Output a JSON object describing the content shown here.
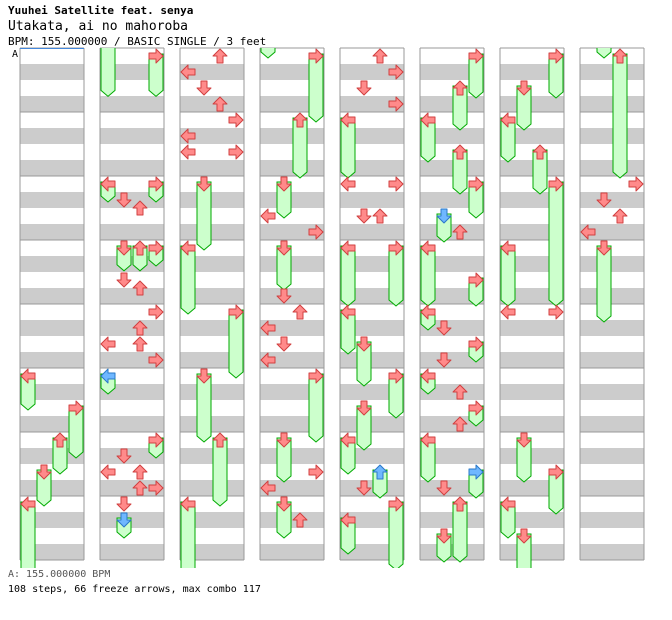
{
  "header": {
    "artist": "Yuuhei Satellite feat. senya",
    "title": "Utakata, ai no mahoroba",
    "info": "BPM: 155.000000 / BASIC SINGLE / 3 feet"
  },
  "bpm_marker": {
    "label": "A"
  },
  "footer": {
    "bpm_line": "A: 155.000000 BPM",
    "stats": "108 steps, 66 freeze arrows, max combo 117"
  },
  "chart_data": {
    "type": "step-chart",
    "lanes": [
      "left",
      "down",
      "up",
      "right"
    ],
    "columns": 8,
    "measures_per_column": 8,
    "beats_per_measure": 4,
    "total_measures": 64,
    "total_steps": 108,
    "freeze_arrows": 66,
    "max_combo": 117,
    "colors": {
      "quarter_note": "#ff8a8a",
      "quarter_stroke": "#d04040",
      "eighth_note": "#6fb7ff",
      "eighth_stroke": "#2a78c8",
      "freeze_body": "#ccffcc",
      "freeze_stroke": "#00aa00",
      "beat_shade": "#cccccc",
      "measure_line": "#999999",
      "column_border": "#999999"
    },
    "notes": [
      {
        "c": 0,
        "l": 0,
        "b": 20,
        "e": 22
      },
      {
        "c": 0,
        "l": 1,
        "b": 26,
        "e": 28
      },
      {
        "c": 0,
        "l": 2,
        "b": 24,
        "e": 26
      },
      {
        "c": 0,
        "l": 3,
        "b": 22,
        "e": 25
      },
      {
        "c": 0,
        "l": 0,
        "b": 28,
        "e": 33
      },
      {
        "c": 1,
        "l": 0,
        "b": -1,
        "e": 2.4
      },
      {
        "c": 1,
        "l": 3,
        "b": 0,
        "e": 2.4
      },
      {
        "c": 1,
        "l": 0,
        "b": 8,
        "e": 9
      },
      {
        "c": 1,
        "l": 1,
        "b": 9
      },
      {
        "c": 1,
        "l": 2,
        "b": 9.5
      },
      {
        "c": 1,
        "l": 3,
        "b": 8,
        "e": 9
      },
      {
        "c": 1,
        "l": 1,
        "b": 12,
        "e": 13.3
      },
      {
        "c": 1,
        "l": 2,
        "b": 12,
        "e": 13.3
      },
      {
        "c": 1,
        "l": 1,
        "b": 14
      },
      {
        "c": 1,
        "l": 3,
        "b": 12,
        "e": 13
      },
      {
        "c": 1,
        "l": 2,
        "b": 14.5
      },
      {
        "c": 1,
        "l": 3,
        "b": 16
      },
      {
        "c": 1,
        "l": 2,
        "b": 17
      },
      {
        "c": 1,
        "l": 0,
        "b": 18
      },
      {
        "c": 1,
        "l": 2,
        "b": 18
      },
      {
        "c": 1,
        "l": 3,
        "b": 19
      },
      {
        "c": 1,
        "l": 0,
        "b": 20,
        "e": 21,
        "q": 8
      },
      {
        "c": 1,
        "l": 3,
        "b": 24,
        "e": 25
      },
      {
        "c": 1,
        "l": 1,
        "b": 25
      },
      {
        "c": 1,
        "l": 0,
        "b": 26
      },
      {
        "c": 1,
        "l": 2,
        "b": 26
      },
      {
        "c": 1,
        "l": 1,
        "b": 28
      },
      {
        "c": 1,
        "l": 2,
        "b": 27
      },
      {
        "c": 1,
        "l": 3,
        "b": 27
      },
      {
        "c": 1,
        "l": 1,
        "b": 29,
        "e": 30,
        "q": 8
      },
      {
        "c": 2,
        "l": 2,
        "b": 0
      },
      {
        "c": 2,
        "l": 0,
        "b": 1
      },
      {
        "c": 2,
        "l": 1,
        "b": 2
      },
      {
        "c": 2,
        "l": 2,
        "b": 3
      },
      {
        "c": 2,
        "l": 3,
        "b": 4
      },
      {
        "c": 2,
        "l": 0,
        "b": 5
      },
      {
        "c": 2,
        "l": 0,
        "b": 6
      },
      {
        "c": 2,
        "l": 3,
        "b": 6
      },
      {
        "c": 2,
        "l": 1,
        "b": 8,
        "e": 12
      },
      {
        "c": 2,
        "l": 0,
        "b": 12,
        "e": 16
      },
      {
        "c": 2,
        "l": 3,
        "b": 16,
        "e": 20
      },
      {
        "c": 2,
        "l": 1,
        "b": 20,
        "e": 24
      },
      {
        "c": 2,
        "l": 2,
        "b": 24,
        "e": 28
      },
      {
        "c": 2,
        "l": 0,
        "b": 28,
        "e": 33
      },
      {
        "c": 3,
        "l": 0,
        "b": -1,
        "e": 0
      },
      {
        "c": 3,
        "l": 3,
        "b": 0,
        "e": 4
      },
      {
        "c": 3,
        "l": 2,
        "b": 4,
        "e": 7.5
      },
      {
        "c": 3,
        "l": 1,
        "b": 8,
        "e": 10
      },
      {
        "c": 3,
        "l": 0,
        "b": 10
      },
      {
        "c": 3,
        "l": 3,
        "b": 11
      },
      {
        "c": 3,
        "l": 1,
        "b": 12,
        "e": 14.5
      },
      {
        "c": 3,
        "l": 1,
        "b": 15
      },
      {
        "c": 3,
        "l": 2,
        "b": 16
      },
      {
        "c": 3,
        "l": 0,
        "b": 17
      },
      {
        "c": 3,
        "l": 1,
        "b": 18
      },
      {
        "c": 3,
        "l": 0,
        "b": 19
      },
      {
        "c": 3,
        "l": 3,
        "b": 20,
        "e": 24
      },
      {
        "c": 3,
        "l": 1,
        "b": 24,
        "e": 26.5
      },
      {
        "c": 3,
        "l": 3,
        "b": 26
      },
      {
        "c": 3,
        "l": 0,
        "b": 27
      },
      {
        "c": 3,
        "l": 1,
        "b": 28,
        "e": 30
      },
      {
        "c": 3,
        "l": 2,
        "b": 29
      },
      {
        "c": 4,
        "l": 2,
        "b": 0
      },
      {
        "c": 4,
        "l": 3,
        "b": 1
      },
      {
        "c": 4,
        "l": 1,
        "b": 2
      },
      {
        "c": 4,
        "l": 3,
        "b": 3
      },
      {
        "c": 4,
        "l": 0,
        "b": 4,
        "e": 7.5
      },
      {
        "c": 4,
        "l": 0,
        "b": 8
      },
      {
        "c": 4,
        "l": 3,
        "b": 8
      },
      {
        "c": 4,
        "l": 1,
        "b": 10
      },
      {
        "c": 4,
        "l": 2,
        "b": 10
      },
      {
        "c": 4,
        "l": 0,
        "b": 12,
        "e": 15.5
      },
      {
        "c": 4,
        "l": 3,
        "b": 12,
        "e": 15.5
      },
      {
        "c": 4,
        "l": 0,
        "b": 16,
        "e": 18.5
      },
      {
        "c": 4,
        "l": 1,
        "b": 18,
        "e": 20.5
      },
      {
        "c": 4,
        "l": 3,
        "b": 20,
        "e": 22.5
      },
      {
        "c": 4,
        "l": 1,
        "b": 22,
        "e": 24.5
      },
      {
        "c": 4,
        "l": 0,
        "b": 24,
        "e": 26
      },
      {
        "c": 4,
        "l": 2,
        "b": 26,
        "e": 27.5,
        "q": 8
      },
      {
        "c": 4,
        "l": 1,
        "b": 27
      },
      {
        "c": 4,
        "l": 0,
        "b": 29,
        "e": 31
      },
      {
        "c": 4,
        "l": 3,
        "b": 28,
        "e": 32
      },
      {
        "c": 5,
        "l": 3,
        "b": 0,
        "e": 2.5
      },
      {
        "c": 5,
        "l": 2,
        "b": 2,
        "e": 4.5
      },
      {
        "c": 5,
        "l": 0,
        "b": 4,
        "e": 6.5
      },
      {
        "c": 5,
        "l": 2,
        "b": 6,
        "e": 8.5
      },
      {
        "c": 5,
        "l": 3,
        "b": 8,
        "e": 10
      },
      {
        "c": 5,
        "l": 1,
        "b": 10,
        "e": 11.5,
        "q": 8
      },
      {
        "c": 5,
        "l": 2,
        "b": 11
      },
      {
        "c": 5,
        "l": 0,
        "b": 12,
        "e": 15.5
      },
      {
        "c": 5,
        "l": 3,
        "b": 14,
        "e": 15.5
      },
      {
        "c": 5,
        "l": 0,
        "b": 16,
        "e": 17
      },
      {
        "c": 5,
        "l": 1,
        "b": 17
      },
      {
        "c": 5,
        "l": 3,
        "b": 18,
        "e": 19
      },
      {
        "c": 5,
        "l": 1,
        "b": 19
      },
      {
        "c": 5,
        "l": 0,
        "b": 20,
        "e": 21
      },
      {
        "c": 5,
        "l": 2,
        "b": 21
      },
      {
        "c": 5,
        "l": 3,
        "b": 22,
        "e": 23
      },
      {
        "c": 5,
        "l": 2,
        "b": 23
      },
      {
        "c": 5,
        "l": 0,
        "b": 24,
        "e": 26.5
      },
      {
        "c": 5,
        "l": 3,
        "b": 26,
        "e": 27.5,
        "q": 8
      },
      {
        "c": 5,
        "l": 1,
        "b": 27
      },
      {
        "c": 5,
        "l": 2,
        "b": 28,
        "e": 31.5
      },
      {
        "c": 5,
        "l": 1,
        "b": 30,
        "e": 31.5
      },
      {
        "c": 6,
        "l": 3,
        "b": 0,
        "e": 2.5
      },
      {
        "c": 6,
        "l": 1,
        "b": 2,
        "e": 4.5
      },
      {
        "c": 6,
        "l": 0,
        "b": 4,
        "e": 6.5
      },
      {
        "c": 6,
        "l": 2,
        "b": 6,
        "e": 8.5
      },
      {
        "c": 6,
        "l": 3,
        "b": 8,
        "e": 15.5
      },
      {
        "c": 6,
        "l": 0,
        "b": 12,
        "e": 15.5
      },
      {
        "c": 6,
        "l": 0,
        "b": 16
      },
      {
        "c": 6,
        "l": 3,
        "b": 16
      },
      {
        "c": 6,
        "l": 1,
        "b": 24,
        "e": 26.5
      },
      {
        "c": 6,
        "l": 3,
        "b": 26,
        "e": 28.5
      },
      {
        "c": 6,
        "l": 0,
        "b": 28,
        "e": 30
      },
      {
        "c": 6,
        "l": 1,
        "b": 30,
        "e": 32.5
      },
      {
        "c": 7,
        "l": 1,
        "b": -1,
        "e": 0
      },
      {
        "c": 7,
        "l": 2,
        "b": 0,
        "e": 7.5
      },
      {
        "c": 7,
        "l": 3,
        "b": 8
      },
      {
        "c": 7,
        "l": 1,
        "b": 9
      },
      {
        "c": 7,
        "l": 2,
        "b": 10
      },
      {
        "c": 7,
        "l": 0,
        "b": 11
      },
      {
        "c": 7,
        "l": 1,
        "b": 12,
        "e": 16.5
      }
    ]
  }
}
